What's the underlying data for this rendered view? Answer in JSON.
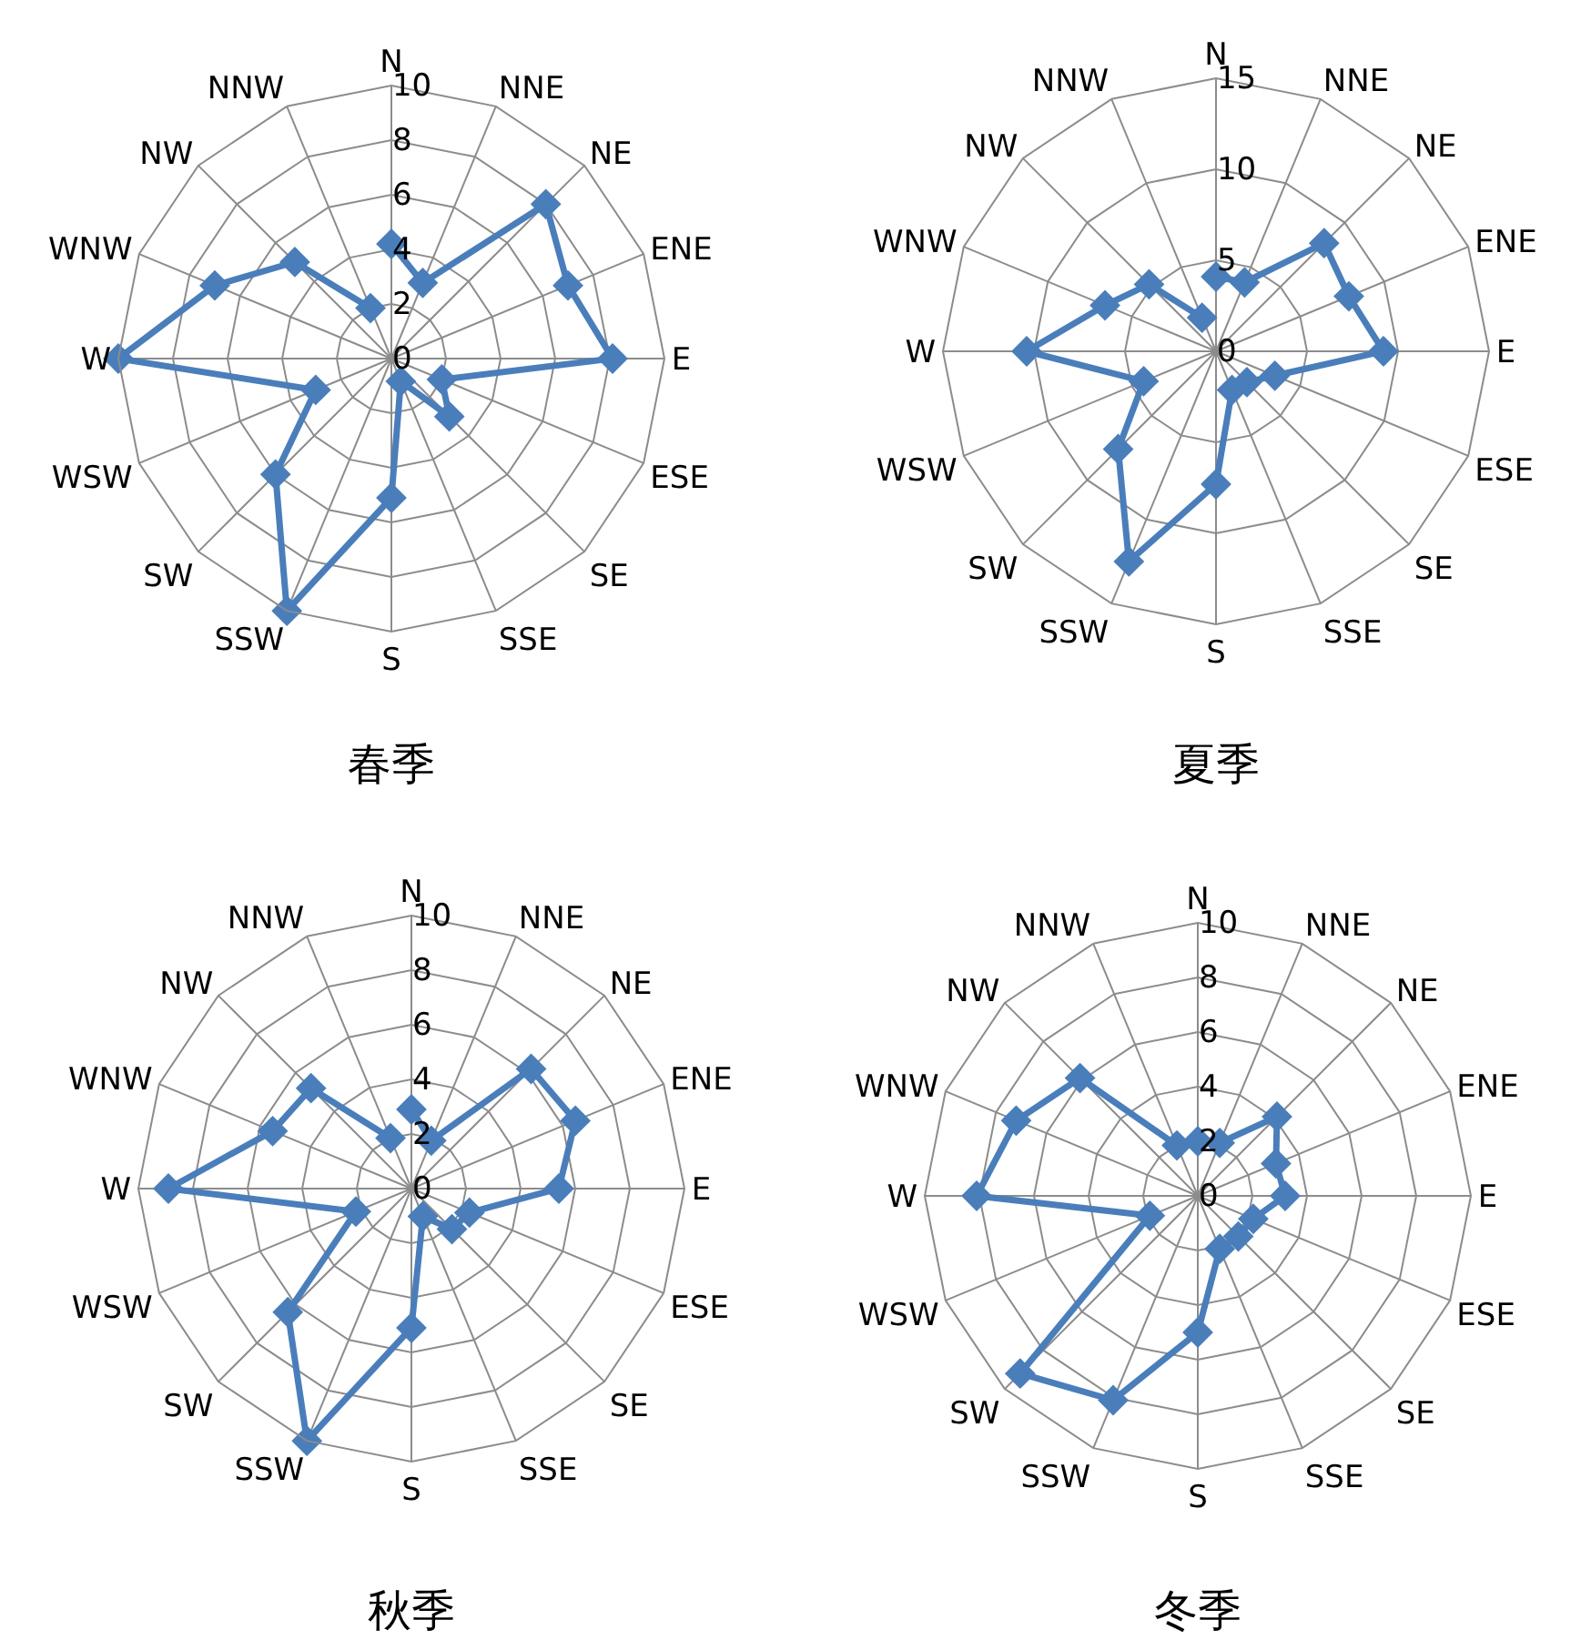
{
  "chart_data": [
    {
      "type": "radar",
      "title": "春季",
      "categories": [
        "N",
        "NNE",
        "NE",
        "ENE",
        "E",
        "ESE",
        "SE",
        "SSE",
        "S",
        "SSW",
        "SW",
        "WSW",
        "W",
        "WNW",
        "NW",
        "NNW"
      ],
      "ylim": [
        0,
        10
      ],
      "yticks": [
        0,
        2,
        4,
        6,
        8,
        10
      ],
      "grid": true,
      "marker": "diamond",
      "series": [
        {
          "color": "#4a7ebb",
          "values": [
            4.2,
            3.0,
            8.0,
            7.0,
            8.1,
            2.0,
            3.0,
            0.9,
            5.1,
            10.0,
            6.0,
            3.0,
            10.0,
            7.0,
            5.0,
            2.0
          ]
        }
      ]
    },
    {
      "type": "radar",
      "title": "夏季",
      "categories": [
        "N",
        "NNE",
        "NE",
        "ENE",
        "E",
        "ESE",
        "SE",
        "SSE",
        "S",
        "SSW",
        "SW",
        "WSW",
        "W",
        "WNW",
        "NW",
        "NNW"
      ],
      "ylim": [
        0,
        15
      ],
      "yticks": [
        0,
        5,
        10,
        15
      ],
      "grid": true,
      "marker": "diamond",
      "series": [
        {
          "color": "#4a7ebb",
          "values": [
            4.1,
            4.1,
            8.4,
            7.9,
            9.2,
            3.5,
            2.4,
            2.3,
            7.3,
            12.5,
            7.6,
            4.3,
            10.4,
            6.6,
            5.2,
            2.0
          ]
        }
      ]
    },
    {
      "type": "radar",
      "title": "秋季",
      "categories": [
        "N",
        "NNE",
        "NE",
        "ENE",
        "E",
        "ESE",
        "SE",
        "SSE",
        "S",
        "SSW",
        "SW",
        "WSW",
        "W",
        "WNW",
        "NW",
        "NNW"
      ],
      "ylim": [
        0,
        10
      ],
      "yticks": [
        0,
        2,
        4,
        6,
        8,
        10
      ],
      "grid": true,
      "marker": "diamond",
      "series": [
        {
          "color": "#4a7ebb",
          "values": [
            2.9,
            1.9,
            6.2,
            6.5,
            5.4,
            2.3,
            2.1,
            1.1,
            5.1,
            10.0,
            6.4,
            2.2,
            8.9,
            5.5,
            5.2,
            2.0
          ]
        }
      ]
    },
    {
      "type": "radar",
      "title": "冬季",
      "categories": [
        "N",
        "NNE",
        "NE",
        "ENE",
        "E",
        "ESE",
        "SE",
        "SSE",
        "S",
        "SSW",
        "SW",
        "WSW",
        "W",
        "WNW",
        "NW",
        "NNW"
      ],
      "ylim": [
        0,
        10
      ],
      "yticks": [
        0,
        2,
        4,
        6,
        8,
        10
      ],
      "grid": true,
      "marker": "diamond",
      "series": [
        {
          "color": "#4a7ebb",
          "values": [
            2.0,
            2.1,
            4.1,
            3.1,
            3.2,
            2.2,
            2.1,
            2.1,
            5.0,
            8.1,
            9.2,
            1.9,
            8.1,
            7.2,
            6.1,
            2.0
          ]
        }
      ]
    }
  ]
}
